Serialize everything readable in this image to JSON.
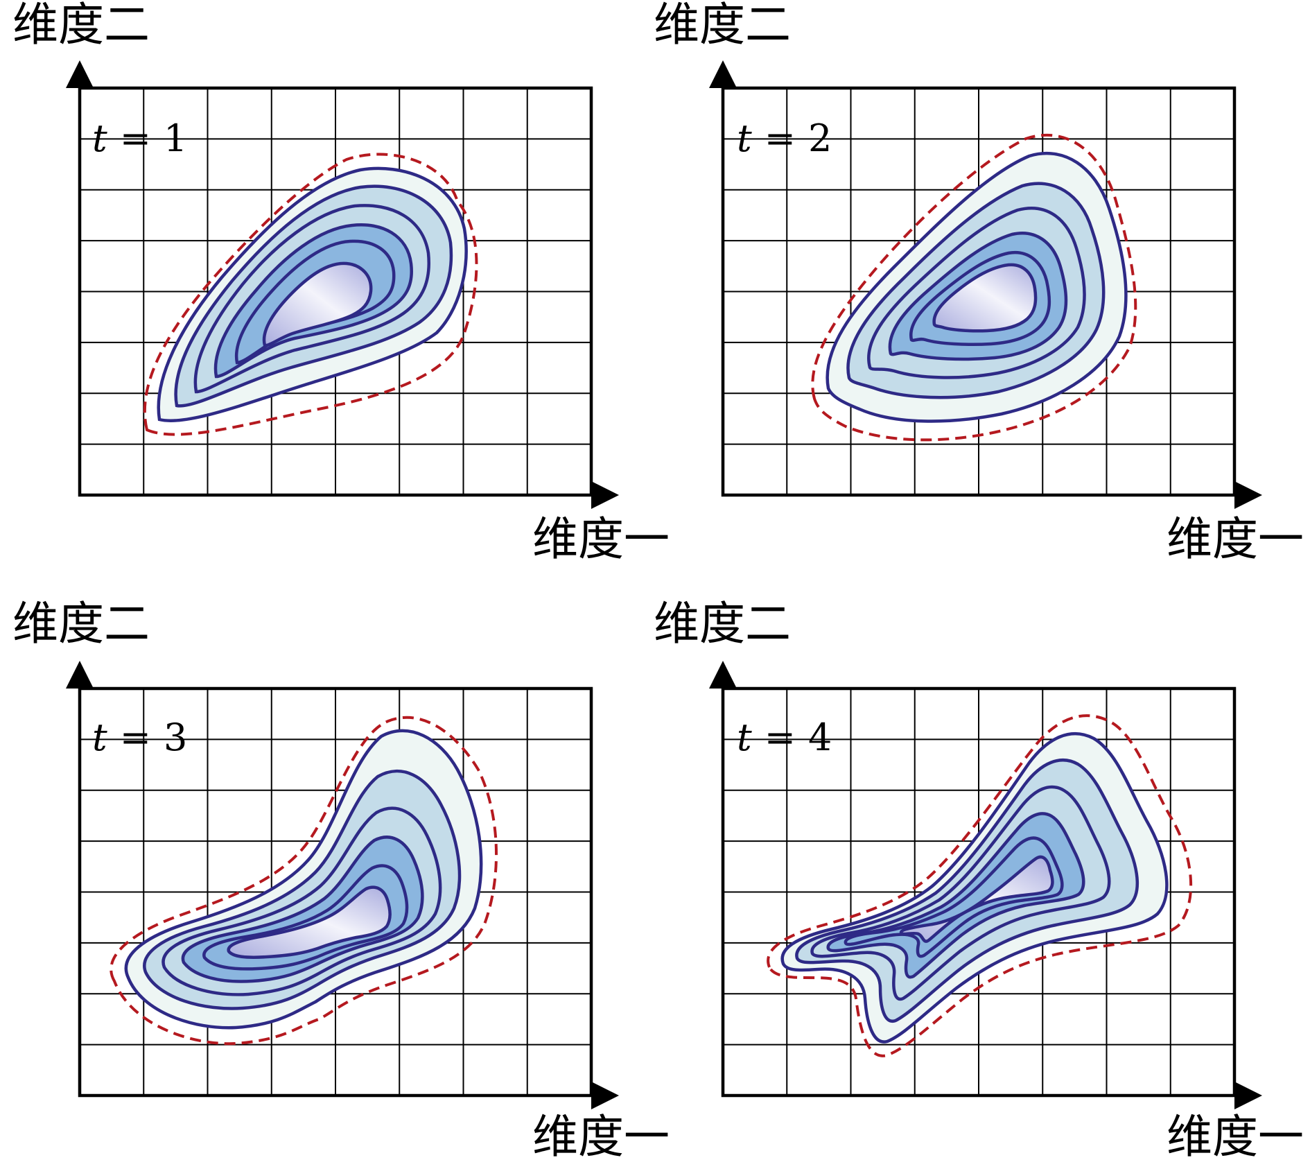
{
  "colors": {
    "contour_line": "#2e2a86",
    "outer_dashed": "#b5191f",
    "fill_outer": "#eef6f4",
    "fill_mid": "#c4dce9",
    "fill_inner": "#8bb6df",
    "fill_core": "#b5b8e3",
    "grid": "#000000",
    "frame": "#000000"
  },
  "panels": [
    {
      "id": "t1",
      "time_label": "t = 1",
      "t_var": "t",
      "t_eq": "=",
      "t_num": "1",
      "x_axis_label": "维度一",
      "y_axis_label": "维度二",
      "grid_columns": 8,
      "grid_rows": 8
    },
    {
      "id": "t2",
      "time_label": "t = 2",
      "t_var": "t",
      "t_eq": "=",
      "t_num": "2",
      "x_axis_label": "维度一",
      "y_axis_label": "维度二",
      "grid_columns": 8,
      "grid_rows": 8
    },
    {
      "id": "t3",
      "time_label": "t = 3",
      "t_var": "t",
      "t_eq": "=",
      "t_num": "3",
      "x_axis_label": "维度一",
      "y_axis_label": "维度二",
      "grid_columns": 8,
      "grid_rows": 8
    },
    {
      "id": "t4",
      "time_label": "t = 4",
      "t_var": "t",
      "t_eq": "=",
      "t_num": "4",
      "x_axis_label": "维度一",
      "y_axis_label": "维度二",
      "grid_columns": 8,
      "grid_rows": 8
    }
  ]
}
